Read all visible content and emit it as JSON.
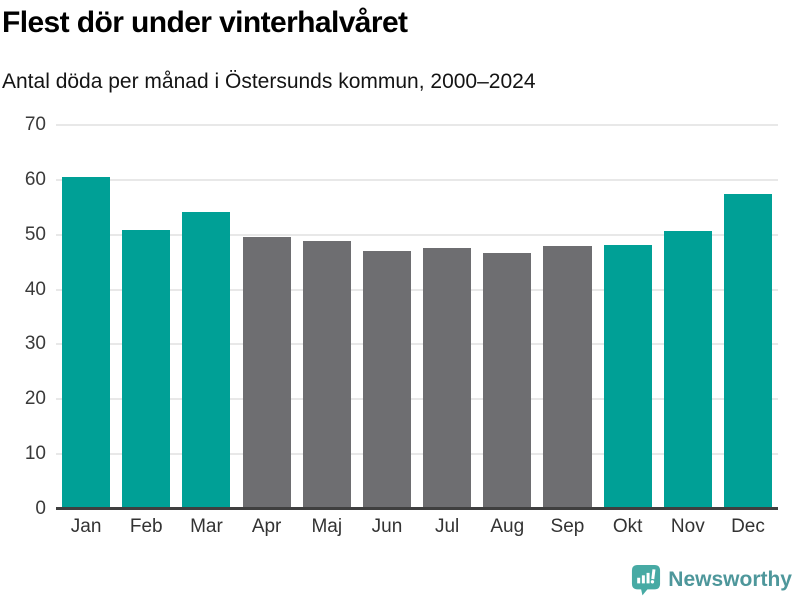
{
  "header": {
    "title": "Flest dör under vinterhalvåret",
    "subtitle": "Antal döda per månad i Östersunds kommun, 2000–2024"
  },
  "chart_data": {
    "type": "bar",
    "title": "Flest dör under vinterhalvåret",
    "subtitle": "Antal döda per månad i Östersunds kommun, 2000–2024",
    "categories": [
      "Jan",
      "Feb",
      "Mar",
      "Apr",
      "Maj",
      "Jun",
      "Jul",
      "Aug",
      "Sep",
      "Okt",
      "Nov",
      "Dec"
    ],
    "values": [
      60.5,
      50.8,
      54.1,
      49.5,
      48.8,
      47.1,
      47.6,
      46.6,
      48.0,
      48.1,
      50.7,
      57.5
    ],
    "highlighted": [
      true,
      true,
      true,
      false,
      false,
      false,
      false,
      false,
      false,
      true,
      true,
      true
    ],
    "highlight_color": "#00a096",
    "base_color": "#6e6e71",
    "xlabel": "",
    "ylabel": "",
    "ylim": [
      0,
      70
    ],
    "yticks": [
      0,
      10,
      20,
      30,
      40,
      50,
      60,
      70
    ],
    "grid": true,
    "legend": "none",
    "gridline_color": "#e8e8e8",
    "axis_line_color": "#3f3f3f"
  },
  "footer": {
    "brand": "Newsworthy",
    "logo_icon": "bar-chart-speech-bubble-icon",
    "brand_color": "#4e979b",
    "icon_color": "#47aaa4"
  }
}
